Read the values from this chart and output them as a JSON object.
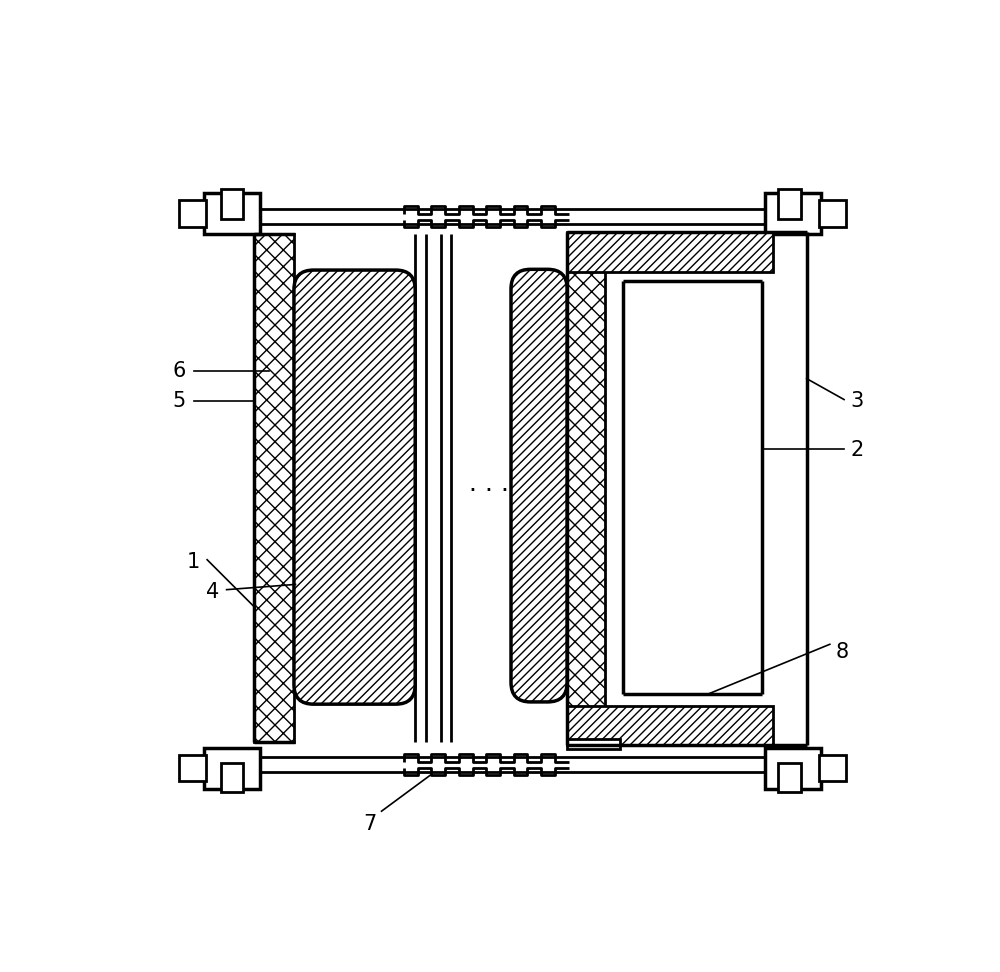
{
  "bg_color": "#ffffff",
  "line_color": "#000000",
  "lw": 2.0,
  "lw_thick": 2.5,
  "lw_thin": 1.2
}
